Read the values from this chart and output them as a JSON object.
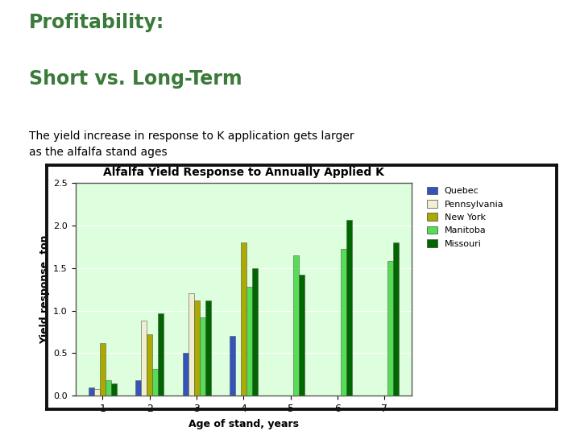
{
  "title_line1": "Profitability:",
  "title_line2": "Short vs. Long-Term",
  "subtitle": "The yield increase in response to K application gets larger\nas the alfalfa stand ages",
  "chart_title": "Alfalfa Yield Response to Annually Applied K",
  "xlabel": "Age of stand, years",
  "ylabel": "Yield response, ton",
  "ylim": [
    0,
    2.5
  ],
  "yticks": [
    0.0,
    0.5,
    1.0,
    1.5,
    2.0,
    2.5
  ],
  "categories": [
    1,
    2,
    3,
    4,
    5,
    6,
    7
  ],
  "series": {
    "Quebec": [
      0.1,
      0.18,
      0.5,
      0.7,
      null,
      null,
      null
    ],
    "Pennsylvania": [
      0.08,
      0.88,
      1.2,
      null,
      null,
      null,
      null
    ],
    "New York": [
      0.62,
      0.72,
      1.12,
      1.8,
      null,
      null,
      null
    ],
    "Manitoba": [
      0.18,
      0.32,
      0.92,
      1.28,
      1.65,
      1.72,
      1.58
    ],
    "Missouri": [
      0.15,
      0.97,
      1.12,
      1.5,
      1.42,
      2.06,
      1.8
    ]
  },
  "colors": {
    "Quebec": "#3355BB",
    "Pennsylvania": "#F0F0D0",
    "New York": "#AAAA00",
    "Manitoba": "#55DD55",
    "Missouri": "#006600"
  },
  "legend_order": [
    "Quebec",
    "Pennsylvania",
    "New York",
    "Manitoba",
    "Missouri"
  ],
  "bg_color": "#FFFFFF",
  "plot_bg": "#DDFFDD",
  "title_color": "#3A7A3A",
  "subtitle_color": "#000000",
  "border_color": "#000000",
  "chart_border_color": "#111111",
  "chart_border_lw": 2.5
}
